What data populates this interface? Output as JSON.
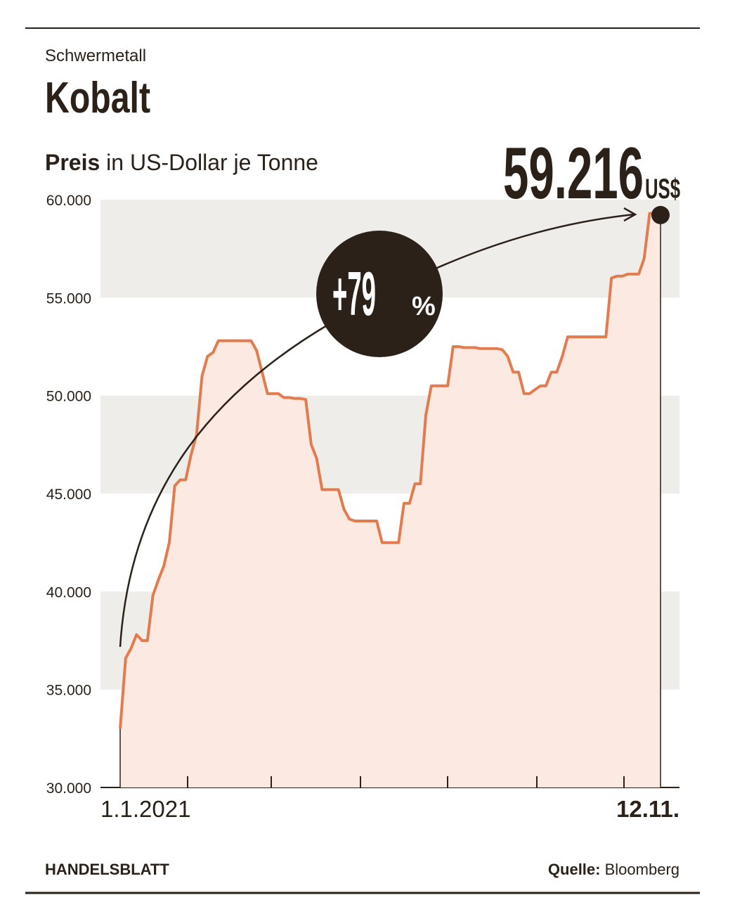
{
  "chart_data": {
    "type": "area",
    "kicker": "Schwermetall",
    "title": "Kobalt",
    "subtitle_bold": "Preis",
    "subtitle": "in US-Dollar je Tonne",
    "end_label": "59.216",
    "end_unit": "US$",
    "change_label": "+79",
    "change_unit": "%",
    "brand": "HANDELSBLATT",
    "source_label": "Quelle:",
    "source": "Bloomberg",
    "color": "#e27c4f",
    "fill": "#fbe9e2",
    "categories": [
      "1.1.2021",
      null,
      null,
      null,
      null,
      null,
      null,
      null,
      null,
      null,
      null,
      null,
      null,
      null,
      null,
      null,
      null,
      null,
      null,
      null,
      null,
      null,
      null,
      null,
      null,
      null,
      null,
      null,
      null,
      null,
      null,
      null,
      null,
      null,
      null,
      null,
      null,
      null,
      null,
      null,
      null,
      null,
      null,
      null,
      null,
      null,
      null,
      null,
      null,
      null,
      null,
      null,
      null,
      null,
      null,
      null,
      null,
      null,
      null,
      null,
      null,
      null,
      null,
      null,
      null,
      null,
      null,
      null,
      null,
      null,
      null,
      null,
      null,
      null,
      null,
      null,
      null,
      null,
      null,
      null,
      null,
      null,
      null,
      null,
      null,
      null,
      null,
      null,
      null,
      null,
      null,
      null,
      null,
      null,
      null,
      null,
      null,
      null,
      null,
      "12.11."
    ],
    "values": [
      33000,
      36600,
      37100,
      37800,
      37500,
      37500,
      39800,
      40600,
      41300,
      42500,
      45400,
      45700,
      45700,
      47000,
      48000,
      51000,
      52000,
      52200,
      52800,
      52800,
      52800,
      52800,
      52800,
      52800,
      52800,
      52300,
      51200,
      50100,
      50100,
      50100,
      49900,
      49900,
      49850,
      49850,
      49800,
      47500,
      46800,
      45200,
      45200,
      45200,
      45200,
      44200,
      43700,
      43600,
      43600,
      43600,
      43600,
      43600,
      42500,
      42500,
      42500,
      42500,
      44500,
      44500,
      45500,
      45500,
      49000,
      50500,
      50500,
      50500,
      50500,
      52500,
      52500,
      52450,
      52450,
      52450,
      52400,
      52400,
      52400,
      52400,
      52350,
      52000,
      51200,
      51200,
      50100,
      50100,
      50300,
      50500,
      50500,
      51200,
      51200,
      52000,
      53000,
      53000,
      53000,
      53000,
      53000,
      53000,
      53000,
      53000,
      56000,
      56100,
      56100,
      56200,
      56200,
      56200,
      57000,
      59300,
      59300,
      59216
    ],
    "ylim": [
      30000,
      60000
    ],
    "yticks": [
      {
        "value": 30000,
        "label": "30.000"
      },
      {
        "value": 35000,
        "label": "35.000"
      },
      {
        "value": 40000,
        "label": "40.000"
      },
      {
        "value": 45000,
        "label": "45.000"
      },
      {
        "value": 50000,
        "label": "50.000"
      },
      {
        "value": 55000,
        "label": "55.000"
      },
      {
        "value": 60000,
        "label": "60.000"
      }
    ]
  }
}
